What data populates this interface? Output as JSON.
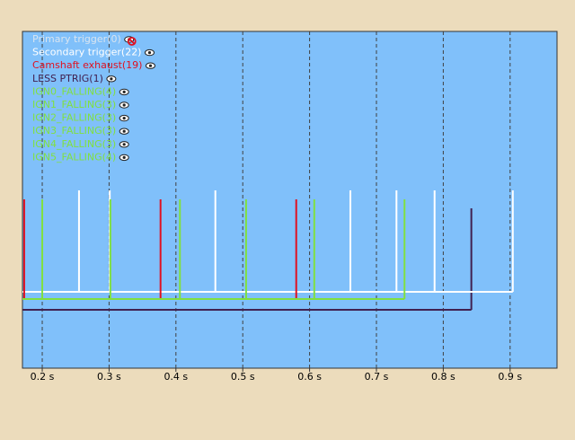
{
  "chart_data": {
    "type": "trigger",
    "series": [
      {
        "name": "Primary trigger(0)",
        "color": "#d8e4f0",
        "events": [],
        "visible": false
      },
      {
        "name": "Secondary trigger(22)",
        "color": "#ffffff",
        "events": [
          0.255,
          0.301,
          0.459,
          0.661,
          0.73,
          0.787,
          0.904
        ],
        "visible": true
      },
      {
        "name": "Camshaft exhaust(19)",
        "color": "#e01020",
        "events": [
          0.173,
          0.377,
          0.58
        ],
        "visible": true
      },
      {
        "name": "LESS PTRIG(1)",
        "color": "#402050",
        "events": [
          0.842
        ],
        "visible": true
      },
      {
        "name": "IGN0_FALLING(4)",
        "color": "#80e040",
        "events": [
          0.2,
          0.302,
          0.406,
          0.505,
          0.607,
          0.742
        ],
        "visible": true
      },
      {
        "name": "IGN1_FALLING(3)",
        "color": "#80e040",
        "events": [],
        "visible": true
      },
      {
        "name": "IGN2_FALLING(3)",
        "color": "#80e040",
        "events": [],
        "visible": true
      },
      {
        "name": "IGN3_FALLING(3)",
        "color": "#80e040",
        "events": [],
        "visible": true
      },
      {
        "name": "IGN4_FALLING(3)",
        "color": "#80e040",
        "events": [],
        "visible": true
      },
      {
        "name": "IGN5_FALLING(4)",
        "color": "#80e040",
        "events": [],
        "visible": true
      }
    ],
    "xlim": [
      0.1704,
      0.9702
    ],
    "xticks": [
      {
        "value": 0.2,
        "label": "0.2 s"
      },
      {
        "value": 0.3,
        "label": "0.3 s"
      },
      {
        "value": 0.4,
        "label": "0.4 s"
      },
      {
        "value": 0.5,
        "label": "0.5 s"
      },
      {
        "value": 0.6,
        "label": "0.6 s"
      },
      {
        "value": 0.7,
        "label": "0.7 s"
      },
      {
        "value": 0.8,
        "label": "0.8 s"
      },
      {
        "value": 0.9,
        "label": "0.9 s"
      }
    ],
    "grid": true
  }
}
